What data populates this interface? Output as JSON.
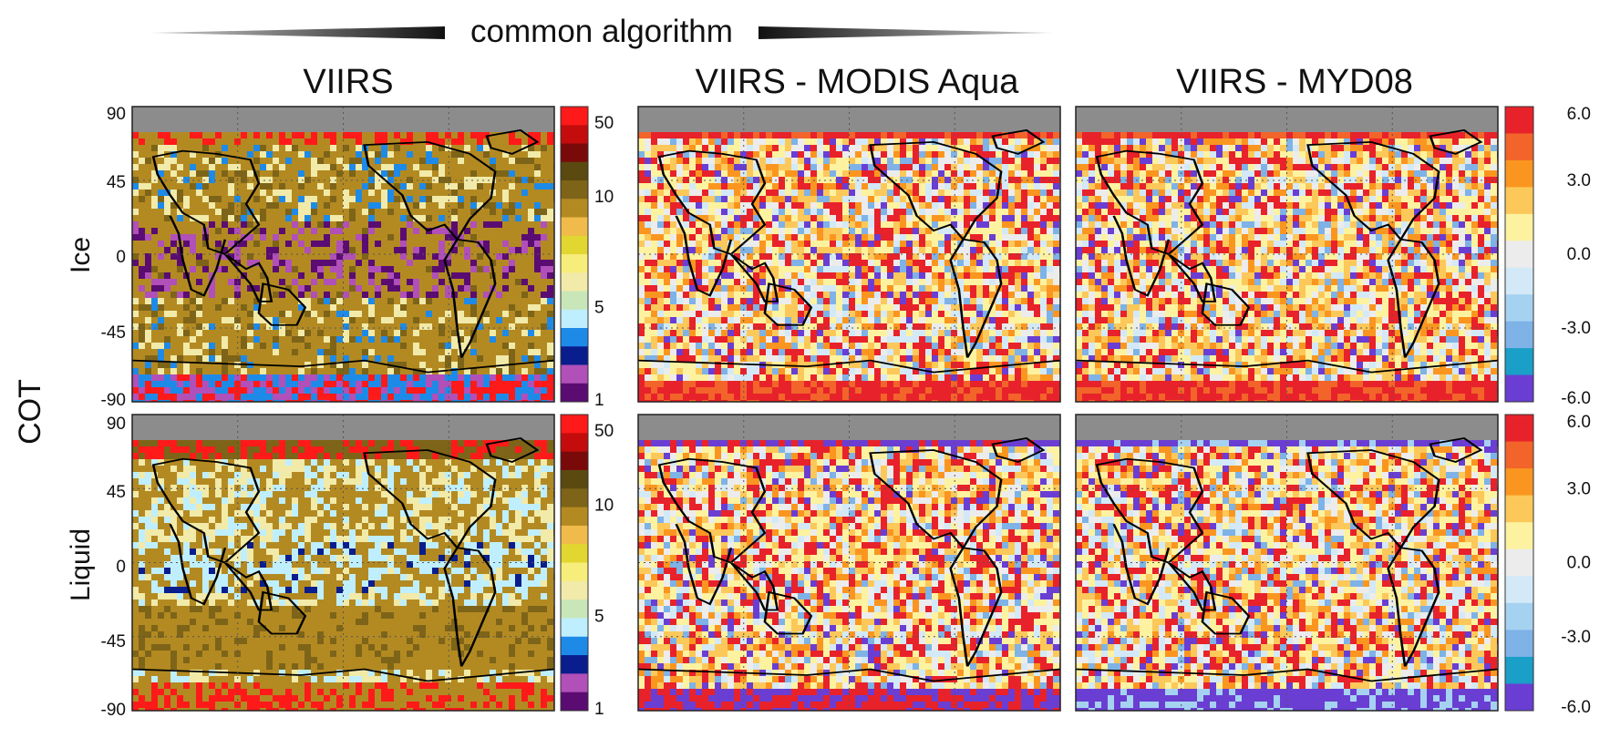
{
  "figure": {
    "header_label": "common algorithm",
    "row_group_label": "COT",
    "row_labels": [
      "Ice",
      "Liquid"
    ],
    "column_titles": [
      "VIIRS",
      "VIIRS - MODIS Aqua",
      "VIIRS - MYD08"
    ],
    "latitude_ticks": [
      "90",
      "45",
      "0",
      "-45",
      "-90"
    ]
  },
  "chart_data": [
    {
      "type": "heatmap",
      "title": "VIIRS",
      "row": "Ice",
      "ylim": [
        -90,
        90
      ],
      "yticks": [
        90,
        45,
        0,
        -45,
        -90
      ],
      "colorbar": {
        "ticks": [
          "50",
          "10",
          "5",
          "1"
        ],
        "tick_bins": [
          0.5,
          4.5,
          10.5,
          13.5
        ],
        "colors": [
          "#ff1a1a",
          "#c40c0c",
          "#7a0a0a",
          "#5a4a10",
          "#7d6418",
          "#b38a22",
          "#f0bb4a",
          "#e2d630",
          "#f7ed7a",
          "#f2eaa8",
          "#c8e6b8",
          "#bfefff",
          "#1e8ae8",
          "#0a1d8c",
          "#b050b8",
          "#5a0c72"
        ]
      }
    },
    {
      "type": "heatmap",
      "title": "VIIRS - MODIS Aqua",
      "row": "Ice",
      "ylim": [
        -90,
        90
      ],
      "yticks": [
        90,
        45,
        0,
        -45,
        -90
      ]
    },
    {
      "type": "heatmap",
      "title": "VIIRS - MYD08",
      "row": "Ice",
      "ylim": [
        -90,
        90
      ],
      "yticks": [
        90,
        45,
        0,
        -45,
        -90
      ],
      "colorbar": {
        "ticks": [
          "6.0",
          "3.0",
          "0.0",
          "-3.0",
          "-6.0"
        ],
        "tick_values": [
          6,
          3,
          0,
          -3,
          -6
        ],
        "range": [
          -6,
          6
        ],
        "colors": [
          "#e8222a",
          "#f2642a",
          "#fa9620",
          "#fcc85a",
          "#fdf2a0",
          "#ececec",
          "#d3e9f7",
          "#a6d2f2",
          "#7fb2e6",
          "#1a9fc8",
          "#6a3ed2"
        ]
      }
    },
    {
      "type": "heatmap",
      "title": "VIIRS",
      "row": "Liquid",
      "ylim": [
        -90,
        90
      ],
      "yticks": [
        90,
        45,
        0,
        -45,
        -90
      ],
      "colorbar": {
        "ticks": [
          "50",
          "10",
          "5",
          "1"
        ],
        "tick_bins": [
          0.5,
          4.5,
          10.5,
          13.5
        ],
        "colors": [
          "#ff1a1a",
          "#c40c0c",
          "#7a0a0a",
          "#5a4a10",
          "#7d6418",
          "#b38a22",
          "#f0bb4a",
          "#e2d630",
          "#f7ed7a",
          "#f2eaa8",
          "#c8e6b8",
          "#bfefff",
          "#1e8ae8",
          "#0a1d8c",
          "#b050b8",
          "#5a0c72"
        ]
      }
    },
    {
      "type": "heatmap",
      "title": "VIIRS - MODIS Aqua",
      "row": "Liquid",
      "ylim": [
        -90,
        90
      ],
      "yticks": [
        90,
        45,
        0,
        -45,
        -90
      ]
    },
    {
      "type": "heatmap",
      "title": "VIIRS - MYD08",
      "row": "Liquid",
      "ylim": [
        -90,
        90
      ],
      "yticks": [
        90,
        45,
        0,
        -45,
        -90
      ],
      "colorbar": {
        "ticks": [
          "6.0",
          "3.0",
          "0.0",
          "-3.0",
          "-6.0"
        ],
        "tick_values": [
          6,
          3,
          0,
          -3,
          -6
        ],
        "range": [
          -6,
          6
        ],
        "colors": [
          "#e8222a",
          "#f2642a",
          "#fa9620",
          "#fcc85a",
          "#fdf2a0",
          "#ececec",
          "#d3e9f7",
          "#a6d2f2",
          "#7fb2e6",
          "#1a9fc8",
          "#6a3ed2"
        ]
      }
    }
  ]
}
